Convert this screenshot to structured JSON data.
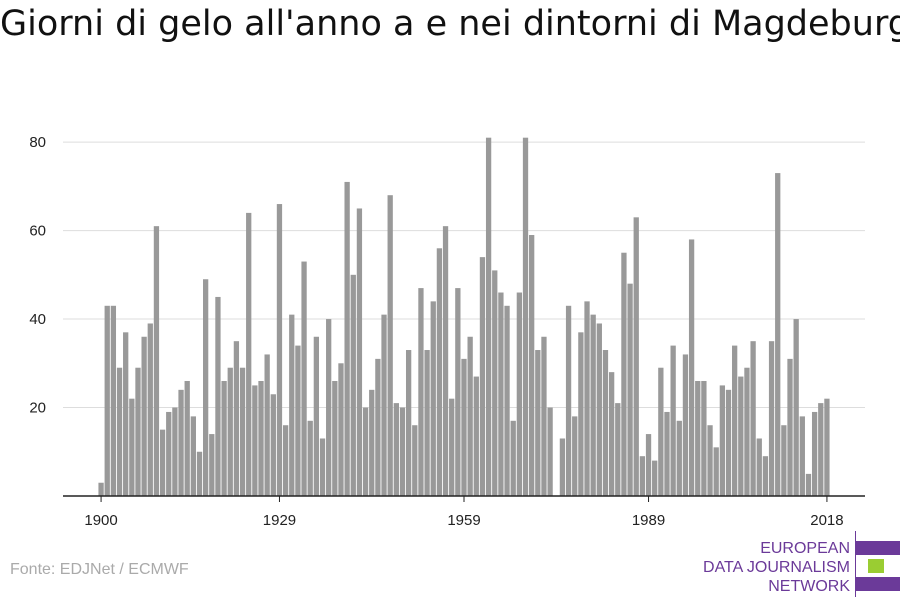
{
  "title": "Giorni di gelo all'anno a e nei dintorni di Magdeburgo",
  "source": "Fonte: EDJNet / ECMWF",
  "logo": {
    "line1": "EUROPEAN",
    "line2": "DATA JOURNALISM",
    "line3": "NETWORK",
    "colors": [
      "#6b3a99",
      "#9acd32",
      "#6b3a99"
    ]
  },
  "colors": {
    "bar": "#999999",
    "axis": "#222222",
    "grid": "#dddddd"
  },
  "chart_data": {
    "type": "bar",
    "title": "Giorni di gelo all'anno a e nei dintorni di Magdeburgo",
    "xlabel": "",
    "ylabel": "",
    "ylim": [
      0,
      85
    ],
    "xlim": [
      1899.5,
      2018.5
    ],
    "xticks": [
      "1900",
      "1929",
      "1959",
      "1989",
      "2018"
    ],
    "yticks": [
      "20",
      "40",
      "60",
      "80"
    ],
    "grid": true,
    "x": [
      1900,
      1901,
      1902,
      1903,
      1904,
      1905,
      1906,
      1907,
      1908,
      1909,
      1910,
      1911,
      1912,
      1913,
      1914,
      1915,
      1916,
      1917,
      1918,
      1919,
      1920,
      1921,
      1922,
      1923,
      1924,
      1925,
      1926,
      1927,
      1928,
      1929,
      1930,
      1931,
      1932,
      1933,
      1934,
      1935,
      1936,
      1937,
      1938,
      1939,
      1940,
      1941,
      1942,
      1943,
      1944,
      1945,
      1946,
      1947,
      1948,
      1949,
      1950,
      1951,
      1952,
      1953,
      1954,
      1955,
      1956,
      1957,
      1958,
      1959,
      1960,
      1961,
      1962,
      1963,
      1964,
      1965,
      1966,
      1967,
      1968,
      1969,
      1970,
      1971,
      1972,
      1973,
      1974,
      1975,
      1976,
      1977,
      1978,
      1979,
      1980,
      1981,
      1982,
      1983,
      1984,
      1985,
      1986,
      1987,
      1988,
      1989,
      1990,
      1991,
      1992,
      1993,
      1994,
      1995,
      1996,
      1997,
      1998,
      1999,
      2000,
      2001,
      2002,
      2003,
      2004,
      2005,
      2006,
      2007,
      2008,
      2009,
      2010,
      2011,
      2012,
      2013,
      2014,
      2015,
      2016,
      2017,
      2018
    ],
    "values": [
      3,
      43,
      43,
      29,
      37,
      22,
      29,
      36,
      39,
      61,
      15,
      19,
      20,
      24,
      26,
      18,
      10,
      49,
      14,
      45,
      26,
      29,
      35,
      29,
      64,
      25,
      26,
      32,
      23,
      66,
      16,
      41,
      34,
      53,
      17,
      36,
      13,
      40,
      26,
      30,
      71,
      50,
      65,
      20,
      24,
      31,
      41,
      68,
      21,
      20,
      33,
      16,
      47,
      33,
      44,
      56,
      61,
      22,
      47,
      31,
      36,
      27,
      54,
      81,
      51,
      46,
      43,
      17,
      46,
      81,
      59,
      33,
      36,
      20,
      0,
      13,
      43,
      18,
      37,
      44,
      41,
      39,
      33,
      28,
      21,
      55,
      48,
      63,
      9,
      14,
      8,
      29,
      19,
      34,
      17,
      32,
      58,
      26,
      26,
      16,
      11,
      25,
      24,
      34,
      27,
      29,
      35,
      13,
      9,
      35,
      73,
      16,
      31,
      40,
      18,
      5,
      19,
      21,
      22
    ]
  }
}
